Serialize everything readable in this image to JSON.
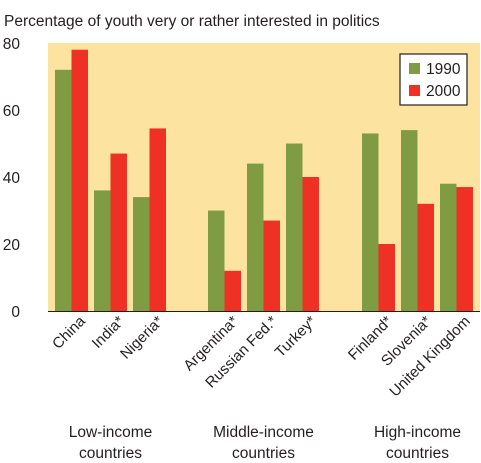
{
  "chart_data": {
    "type": "bar",
    "title": "Percentage of youth very or rather interested in politics",
    "xlabel": "",
    "ylabel": "",
    "ylim": [
      0,
      80
    ],
    "yticks": [
      0,
      20,
      40,
      60,
      80
    ],
    "grid": false,
    "legend": "top-right",
    "series": [
      {
        "name": "1990",
        "color": "#7f9c45",
        "values": [
          72,
          36,
          34,
          30,
          44,
          50,
          53,
          54,
          38
        ]
      },
      {
        "name": "2000",
        "color": "#ee3124",
        "values": [
          78,
          47,
          54.5,
          12,
          27,
          40,
          20,
          32,
          37
        ]
      }
    ],
    "groups": [
      {
        "label_lines": [
          "Low-income",
          "countries"
        ],
        "categories": [
          "China",
          "India*",
          "Nigeria*"
        ]
      },
      {
        "label_lines": [
          "Middle-income",
          "countries"
        ],
        "categories": [
          "Argentina*",
          "Russian Fed.*",
          "Turkey*"
        ]
      },
      {
        "label_lines": [
          "High-income",
          "countries"
        ],
        "categories": [
          "Finland*",
          "Slovenia*",
          "United Kingdom"
        ]
      }
    ],
    "background_color": "#fce4a0"
  }
}
